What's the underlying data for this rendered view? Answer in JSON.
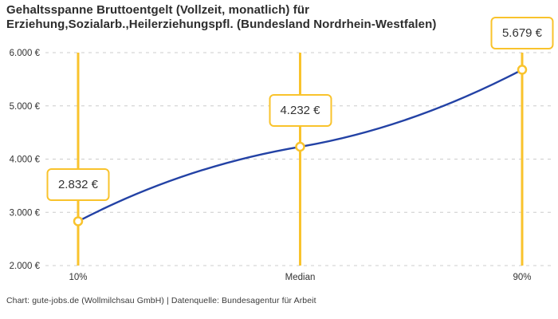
{
  "chart_data": {
    "type": "line",
    "title": "Gehaltsspanne Bruttoentgelt (Vollzeit, monatlich) für Erziehung,Sozialarb.,Heilerziehungspfl. (Bundesland Nordrhein-Westfalen)",
    "title_lines": [
      "Gehaltsspanne Bruttoentgelt (Vollzeit, monatlich) für",
      "Erziehung,Sozialarb.,Heilerziehungspfl. (Bundesland Nordrhein-Westfalen)"
    ],
    "categories": [
      "10%",
      "Median",
      "90%"
    ],
    "values": [
      2832,
      4232,
      5679
    ],
    "point_labels": [
      "2.832 €",
      "4.232 €",
      "5.679 €"
    ],
    "unit": "€",
    "xlabel": "",
    "ylabel": "",
    "ylim": [
      2000,
      6000
    ],
    "yticks": [
      {
        "value": 2000,
        "label": "2.000 €"
      },
      {
        "value": 3000,
        "label": "3.000 €"
      },
      {
        "value": 4000,
        "label": "4.000 €"
      },
      {
        "value": 5000,
        "label": "5.000 €"
      },
      {
        "value": 6000,
        "label": "6.000 €"
      }
    ],
    "grid": "horizontal-dashed",
    "legend": "none",
    "colors": {
      "curve": "#2342a5",
      "accent": "#f9c32c",
      "grid": "#cccccc",
      "tick_text": "#333333",
      "title_text": "#2d2d2d",
      "label_text": "#333333",
      "background": "#ffffff"
    },
    "source": "Chart: gute-jobs.de (Wollmilchsau GmbH) | Datenquelle: Bundesagentur für Arbeit"
  }
}
